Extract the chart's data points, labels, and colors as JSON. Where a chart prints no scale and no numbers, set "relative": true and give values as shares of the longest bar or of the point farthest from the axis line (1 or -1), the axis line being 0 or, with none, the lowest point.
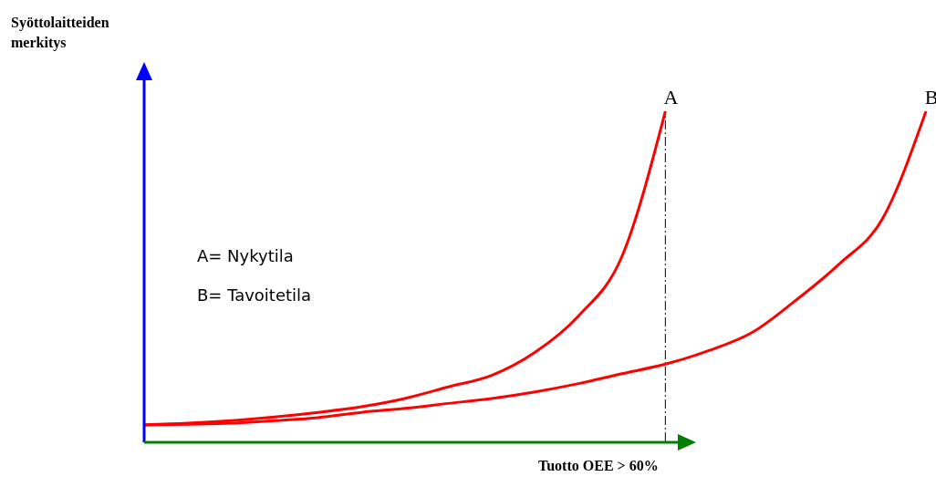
{
  "chart_data": {
    "type": "line",
    "relative": true,
    "ylabel": "Syöttolaitteiden merkitys",
    "xlabel": "Tuotto OEE > 60%",
    "categories": [
      null,
      null,
      null,
      null,
      null,
      null,
      null,
      null,
      null,
      null,
      null,
      null,
      null,
      null,
      null,
      null,
      null,
      null,
      null
    ],
    "series": [
      {
        "name": "A",
        "color": "#ff0000",
        "values": [
          0.05,
          0.055,
          0.063,
          0.074,
          0.088,
          0.105,
          0.13,
          0.165,
          0.2,
          0.27,
          0.38,
          0.56,
          1.0,
          null,
          null,
          null,
          null,
          null,
          null
        ]
      },
      {
        "name": "B",
        "color": "#ff0000",
        "values": [
          0.05,
          0.052,
          0.055,
          0.063,
          0.072,
          0.088,
          0.1,
          0.115,
          0.13,
          0.15,
          0.175,
          0.205,
          0.234,
          0.275,
          0.33,
          0.427,
          0.537,
          0.675,
          1.0
        ]
      }
    ],
    "annotations": [
      "A= Nykytila",
      "B= Tavoitetila"
    ]
  }
}
